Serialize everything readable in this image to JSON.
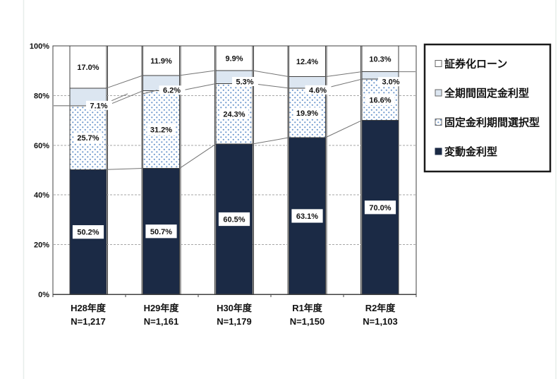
{
  "chart_data": {
    "type": "bar",
    "subtype": "stacked-100-percent",
    "title": "",
    "xlabel": "",
    "ylabel": "",
    "categories": [
      "H28年度",
      "H29年度",
      "H30年度",
      "R1年度",
      "R2年度"
    ],
    "category_sublabels": [
      "N=1,217",
      "N=1,161",
      "N=1,179",
      "N=1,150",
      "N=1,103"
    ],
    "series": [
      {
        "name": "変動金利型",
        "style": "navy",
        "values": [
          50.2,
          50.7,
          60.5,
          63.1,
          70.0
        ]
      },
      {
        "name": "固定金利期間選択型",
        "style": "dotted",
        "values": [
          25.7,
          31.2,
          24.3,
          19.9,
          16.6
        ]
      },
      {
        "name": "全期間固定金利型",
        "style": "lightblue",
        "values": [
          7.1,
          6.2,
          5.3,
          4.6,
          3.0
        ]
      },
      {
        "name": "証券化ローン",
        "style": "white",
        "values": [
          17.0,
          11.9,
          9.9,
          12.4,
          10.3
        ]
      }
    ],
    "value_label_suffix": "%",
    "y_axis": {
      "min": 0,
      "max": 100,
      "tick_values": [
        0,
        20,
        40,
        60,
        80,
        100
      ],
      "tick_labels": [
        "0%",
        "20%",
        "40%",
        "60%",
        "80%",
        "100%"
      ],
      "gridlines_at": [
        20,
        40,
        60,
        80
      ],
      "grid_style": "dashed"
    },
    "legend": {
      "position": "right",
      "items": [
        {
          "label": "証券化ローン",
          "style": "white"
        },
        {
          "label": "全期間固定金利型",
          "style": "lightblue"
        },
        {
          "label": "固定金利期間選択型",
          "style": "dotted"
        },
        {
          "label": "変動金利型",
          "style": "navy"
        }
      ]
    },
    "connector_lines": true
  },
  "colors": {
    "navy": "#1b2a45",
    "lightblue": "#dce6f1",
    "white": "#ffffff",
    "dot": "#6b96cc",
    "bar_border": "#404040",
    "connector": "#737373",
    "gridline": "#a6a6a6",
    "legend_border": "#1a1a1a",
    "text": "#111111",
    "page_line": "#e7edea"
  }
}
